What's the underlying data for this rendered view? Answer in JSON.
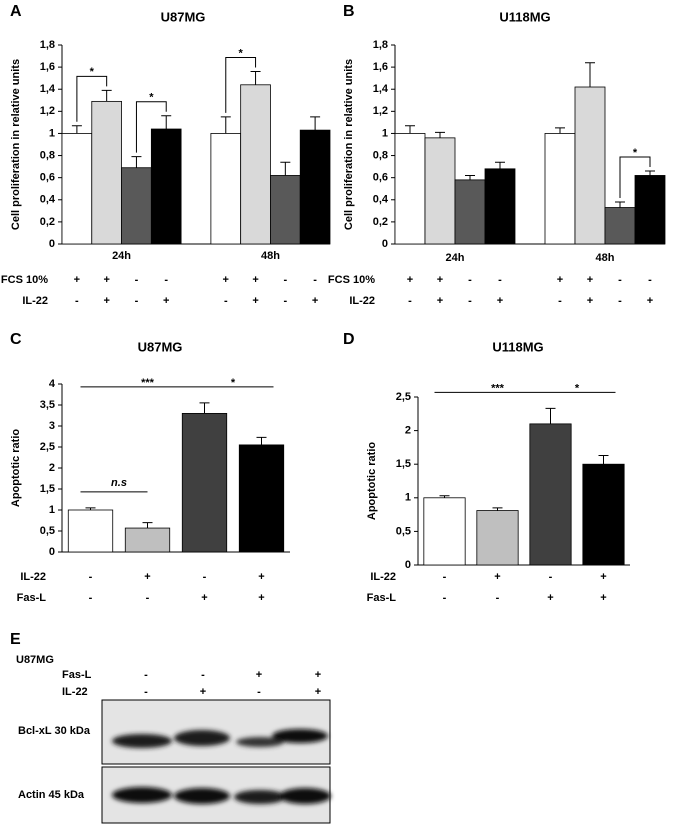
{
  "chart_data": [
    {
      "panel": "A",
      "type": "bar",
      "title": "U87MG",
      "ylabel": "Cell proliferation in relative units",
      "categories": [
        "24h",
        "48h"
      ],
      "series": [
        {
          "color": "#ffffff",
          "values": [
            1.0,
            1.0
          ],
          "errors": [
            0.07,
            0.15
          ]
        },
        {
          "color": "#d9d9d9",
          "values": [
            1.29,
            1.44
          ],
          "errors": [
            0.1,
            0.12
          ]
        },
        {
          "color": "#595959",
          "values": [
            0.69,
            0.62
          ],
          "errors": [
            0.1,
            0.12
          ]
        },
        {
          "color": "#000000",
          "values": [
            1.04,
            1.03
          ],
          "errors": [
            0.12,
            0.12
          ]
        }
      ],
      "ylim": [
        0,
        1.8
      ],
      "yticks": [
        0,
        {
          "value": 0.2,
          "label": "0,2"
        },
        {
          "value": 0.4,
          "label": "0,4"
        },
        {
          "value": 0.6,
          "label": "0,6"
        },
        {
          "value": 0.8,
          "label": "0,8"
        },
        1,
        {
          "value": 1.2,
          "label": "1,2"
        },
        {
          "value": 1.4,
          "label": "1,4"
        },
        {
          "value": 1.6,
          "label": "1,6"
        },
        {
          "value": 1.8,
          "label": "1,8"
        }
      ],
      "conditions": [
        {
          "label": "FCS 10%",
          "signs": [
            "+",
            "+",
            "-",
            "-",
            "+",
            "+",
            "-",
            "-"
          ]
        },
        {
          "label": "IL-22",
          "signs": [
            "-",
            "+",
            "-",
            "+",
            "-",
            "+",
            "-",
            "+"
          ]
        }
      ],
      "annotations": [
        {
          "text": "*",
          "category": 0,
          "between": [
            0,
            1
          ]
        },
        {
          "text": "*",
          "category": 0,
          "between": [
            2,
            3
          ]
        },
        {
          "text": "*",
          "category": 1,
          "between": [
            0,
            1
          ]
        }
      ]
    },
    {
      "panel": "B",
      "type": "bar",
      "title": "U118MG",
      "ylabel": "Cell proliferation in relative units",
      "categories": [
        "24h",
        "48h"
      ],
      "series": [
        {
          "color": "#ffffff",
          "values": [
            1.0,
            1.0
          ],
          "errors": [
            0.07,
            0.05
          ]
        },
        {
          "color": "#d9d9d9",
          "values": [
            0.96,
            1.42
          ],
          "errors": [
            0.05,
            0.22
          ]
        },
        {
          "color": "#595959",
          "values": [
            0.58,
            0.33
          ],
          "errors": [
            0.04,
            0.05
          ]
        },
        {
          "color": "#000000",
          "values": [
            0.68,
            0.62
          ],
          "errors": [
            0.06,
            0.04
          ]
        }
      ],
      "ylim": [
        0,
        1.8
      ],
      "yticks": [
        0,
        {
          "value": 0.2,
          "label": "0,2"
        },
        {
          "value": 0.4,
          "label": "0,4"
        },
        {
          "value": 0.6,
          "label": "0,6"
        },
        {
          "value": 0.8,
          "label": "0,8"
        },
        1,
        {
          "value": 1.2,
          "label": "1,2"
        },
        {
          "value": 1.4,
          "label": "1,4"
        },
        {
          "value": 1.6,
          "label": "1,6"
        },
        {
          "value": 1.8,
          "label": "1,8"
        }
      ],
      "conditions": [
        {
          "label": "FCS 10%",
          "signs": [
            "+",
            "+",
            "-",
            "-",
            "+",
            "+",
            "-",
            "-"
          ]
        },
        {
          "label": "IL-22",
          "signs": [
            "-",
            "+",
            "-",
            "+",
            "-",
            "+",
            "-",
            "+"
          ]
        }
      ],
      "annotations": [
        {
          "text": "*",
          "category": 1,
          "between": [
            2,
            3
          ]
        }
      ]
    },
    {
      "panel": "C",
      "type": "bar",
      "title": "U87MG",
      "ylabel": "Apoptotic ratio",
      "series": [
        {
          "color": "#ffffff",
          "values": [
            1.0
          ],
          "errors": [
            0.05
          ]
        },
        {
          "color": "#bfbfbf",
          "values": [
            0.57
          ],
          "errors": [
            0.13
          ]
        },
        {
          "color": "#404040",
          "values": [
            3.3
          ],
          "errors": [
            0.25
          ]
        },
        {
          "color": "#000000",
          "values": [
            2.55
          ],
          "errors": [
            0.18
          ]
        }
      ],
      "ylim": [
        0,
        4
      ],
      "yticks": [
        0,
        {
          "value": 0.5,
          "label": "0,5"
        },
        1,
        {
          "value": 1.5,
          "label": "1,5"
        },
        2,
        {
          "value": 2.5,
          "label": "2,5"
        },
        3,
        {
          "value": 3.5,
          "label": "3,5"
        },
        4
      ],
      "conditions": [
        {
          "label": "IL-22",
          "signs": [
            "-",
            "+",
            "-",
            "+"
          ]
        },
        {
          "label": "Fas-L",
          "signs": [
            "-",
            "-",
            "+",
            "+"
          ]
        }
      ],
      "annotations": [
        {
          "text": "n.s",
          "category": 0,
          "between": [
            0,
            1
          ]
        },
        {
          "text": "***",
          "category": 0,
          "between": [
            0,
            2
          ]
        },
        {
          "text": "*",
          "category": 0,
          "between": [
            2,
            3
          ]
        }
      ]
    },
    {
      "panel": "D",
      "type": "bar",
      "title": "U118MG",
      "ylabel": "Apoptotic ratio",
      "series": [
        {
          "color": "#ffffff",
          "values": [
            1.0
          ],
          "errors": [
            0.03
          ]
        },
        {
          "color": "#bfbfbf",
          "values": [
            0.81
          ],
          "errors": [
            0.04
          ]
        },
        {
          "color": "#404040",
          "values": [
            2.1
          ],
          "errors": [
            0.23
          ]
        },
        {
          "color": "#000000",
          "values": [
            1.5
          ],
          "errors": [
            0.13
          ]
        }
      ],
      "ylim": [
        0,
        2.5
      ],
      "yticks": [
        0,
        {
          "value": 0.5,
          "label": "0,5"
        },
        1,
        {
          "value": 1.5,
          "label": "1,5"
        },
        2,
        {
          "value": 2.5,
          "label": "2,5"
        }
      ],
      "conditions": [
        {
          "label": "IL-22",
          "signs": [
            "-",
            "+",
            "-",
            "+"
          ]
        },
        {
          "label": "Fas-L",
          "signs": [
            "-",
            "-",
            "+",
            "+"
          ]
        }
      ],
      "annotations": [
        {
          "text": "***",
          "category": 0,
          "between": [
            0,
            2
          ]
        },
        {
          "text": "*",
          "category": 0,
          "between": [
            2,
            3
          ]
        }
      ]
    }
  ],
  "blot": {
    "panel": "E",
    "title": "U87MG",
    "conditions": [
      {
        "label": "Fas-L",
        "signs": [
          "-",
          "-",
          "+",
          "+"
        ]
      },
      {
        "label": "IL-22",
        "signs": [
          "-",
          "+",
          "-",
          "+"
        ]
      }
    ],
    "bands": [
      "Bcl-xL 30 kDa",
      "Actin 45 kDa"
    ]
  }
}
